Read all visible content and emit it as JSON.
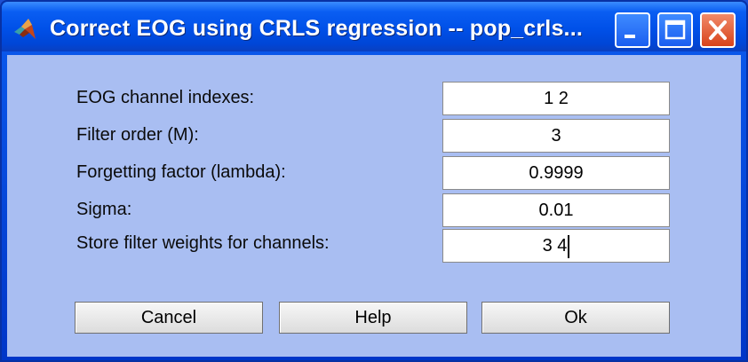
{
  "window": {
    "title": "Correct EOG using CRLS regression -- pop_crls...",
    "app_icon": "matlab-logo-icon",
    "controls": {
      "minimize": "minimize-icon",
      "maximize": "maximize-icon",
      "close": "close-icon"
    }
  },
  "form": {
    "fields": [
      {
        "label": "EOG channel indexes:",
        "value": "1 2"
      },
      {
        "label": "Filter order (M):",
        "value": "3"
      },
      {
        "label": "Forgetting factor (lambda):",
        "value": "0.9999"
      },
      {
        "label": "Sigma:",
        "value": "0.01"
      },
      {
        "label": "Store filter weights for channels:",
        "value": "3 4"
      }
    ]
  },
  "buttons": {
    "cancel": "Cancel",
    "help": "Help",
    "ok": "Ok"
  },
  "colors": {
    "title_bar": "#0050e8",
    "client_bg": "#a9bef2",
    "close_button": "#d8431a"
  }
}
